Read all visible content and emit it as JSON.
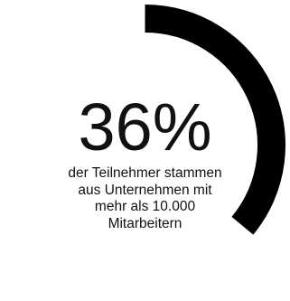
{
  "chart_data": {
    "type": "pie",
    "variant": "radial-progress",
    "value_percent": 36,
    "start_position": "top",
    "direction": "clockwise",
    "colors": {
      "progress": "#000000",
      "background": "#ffffff",
      "text": "#111111"
    },
    "value_label": "36%",
    "caption_lines": [
      "der Teilnehmer stammen",
      "aus Unternehmen mit",
      "mehr als 10.000",
      "Mitarbeitern"
    ]
  }
}
